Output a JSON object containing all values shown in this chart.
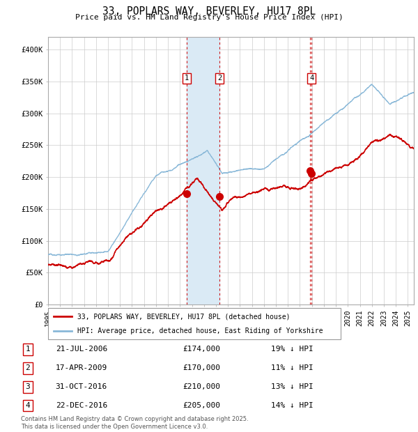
{
  "title": "33, POPLARS WAY, BEVERLEY, HU17 8PL",
  "subtitle": "Price paid vs. HM Land Registry's House Price Index (HPI)",
  "background_color": "#ffffff",
  "plot_bg_color": "#ffffff",
  "grid_color": "#cccccc",
  "hpi_color": "#89b8d8",
  "house_color": "#cc0000",
  "ylim": [
    0,
    420000
  ],
  "yticks": [
    0,
    50000,
    100000,
    150000,
    200000,
    250000,
    300000,
    350000,
    400000
  ],
  "ytick_labels": [
    "£0",
    "£50K",
    "£100K",
    "£150K",
    "£200K",
    "£250K",
    "£300K",
    "£350K",
    "£400K"
  ],
  "sale_events": [
    {
      "num": 1,
      "date": "21-JUL-2006",
      "price": 174000,
      "pct": "19%",
      "year": 2006.55,
      "show_box": true
    },
    {
      "num": 2,
      "date": "17-APR-2009",
      "price": 170000,
      "pct": "11%",
      "year": 2009.29,
      "show_box": true
    },
    {
      "num": 3,
      "date": "31-OCT-2016",
      "price": 210000,
      "pct": "13%",
      "year": 2016.83,
      "show_box": false
    },
    {
      "num": 4,
      "date": "22-DEC-2016",
      "price": 205000,
      "pct": "14%",
      "year": 2016.97,
      "show_box": true
    }
  ],
  "shaded_region": [
    2006.55,
    2009.29
  ],
  "legend_entries": [
    "33, POPLARS WAY, BEVERLEY, HU17 8PL (detached house)",
    "HPI: Average price, detached house, East Riding of Yorkshire"
  ],
  "footnote1": "Contains HM Land Registry data © Crown copyright and database right 2025.",
  "footnote2": "This data is licensed under the Open Government Licence v3.0.",
  "xlim": [
    1995,
    2025.5
  ],
  "xtick_start": 1995,
  "xtick_end": 2026
}
